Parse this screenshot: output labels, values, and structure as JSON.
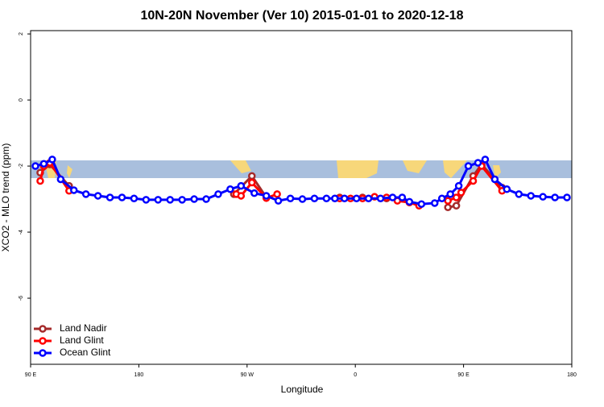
{
  "chart_data": {
    "type": "line",
    "title": "10N-20N November (Ver 10)   2015-01-01 to 2020-12-18",
    "x_label": "Longitude",
    "y_label": "XCO2 - MLO trend (ppm)",
    "xlim": [
      90,
      540
    ],
    "ylim": [
      -8,
      2.1
    ],
    "xticks": [
      {
        "value": 90,
        "label": "90 E"
      },
      180,
      {
        "value": 270,
        "label": "90 W"
      },
      {
        "value": 360,
        "label": "0"
      },
      {
        "value": 450,
        "label": "90 E"
      },
      {
        "value": 540,
        "label": "180"
      }
    ],
    "yticks": [
      2,
      0,
      -2,
      -4,
      -6
    ],
    "legend": "bottom-left",
    "series": [
      {
        "name": "Land Nadir",
        "color": "#a52a2a",
        "x": [
          98,
          106,
          122,
          190,
          259,
          274,
          286,
          320,
          347,
          366,
          386,
          405,
          420,
          437,
          444,
          458,
          465,
          482
        ],
        "values": [
          -2.2,
          -1.95,
          -2.6,
          null,
          -2.85,
          -2.3,
          -2.95,
          null,
          -2.95,
          -2.95,
          -2.98,
          -3.1,
          null,
          -3.25,
          -3.2,
          -2.3,
          -1.95,
          -2.65
        ]
      },
      {
        "name": "Land Glint",
        "color": "#ff0000",
        "x": [
          98,
          101,
          106,
          122,
          190,
          261,
          265,
          274,
          286,
          295,
          320,
          347,
          356,
          366,
          376,
          386,
          395,
          405,
          413,
          425,
          437,
          444,
          448,
          458,
          465,
          482
        ],
        "values": [
          -2.45,
          -2.0,
          -1.9,
          -2.75,
          null,
          -2.85,
          -2.9,
          -2.5,
          -2.97,
          -2.85,
          null,
          -2.98,
          -2.98,
          -2.98,
          -2.93,
          -2.95,
          -3.05,
          -3.1,
          -3.2,
          null,
          -3.05,
          -2.95,
          -2.8,
          -2.45,
          -2.0,
          -2.75
        ]
      },
      {
        "name": "Ocean Glint",
        "color": "#0000ff",
        "x": [
          94,
          101,
          108,
          115,
          126,
          136,
          146,
          156,
          166,
          176,
          186,
          196,
          206,
          216,
          226,
          236,
          246,
          256,
          265,
          276,
          286,
          296,
          306,
          316,
          326,
          336,
          343,
          351,
          361,
          371,
          381,
          391,
          399,
          405,
          415,
          426,
          432,
          439,
          446,
          454,
          462,
          468,
          476,
          486,
          496,
          506,
          516,
          526,
          536
        ],
        "values": [
          -2.0,
          -1.93,
          -1.8,
          -2.4,
          -2.73,
          -2.85,
          -2.9,
          -2.95,
          -2.95,
          -2.98,
          -3.02,
          -3.02,
          -3.02,
          -3.02,
          -3.0,
          -3.0,
          -2.85,
          -2.7,
          -2.6,
          -2.82,
          -2.9,
          -3.05,
          -2.98,
          -3.0,
          -2.98,
          -2.98,
          -2.98,
          -2.98,
          -2.98,
          -2.98,
          -2.98,
          -2.95,
          -2.95,
          -3.08,
          -3.15,
          -3.12,
          -2.98,
          -2.85,
          -2.6,
          -2.0,
          -1.9,
          -1.8,
          -2.4,
          -2.7,
          -2.85,
          -2.9,
          -2.93,
          -2.95,
          -2.95
        ]
      }
    ]
  }
}
